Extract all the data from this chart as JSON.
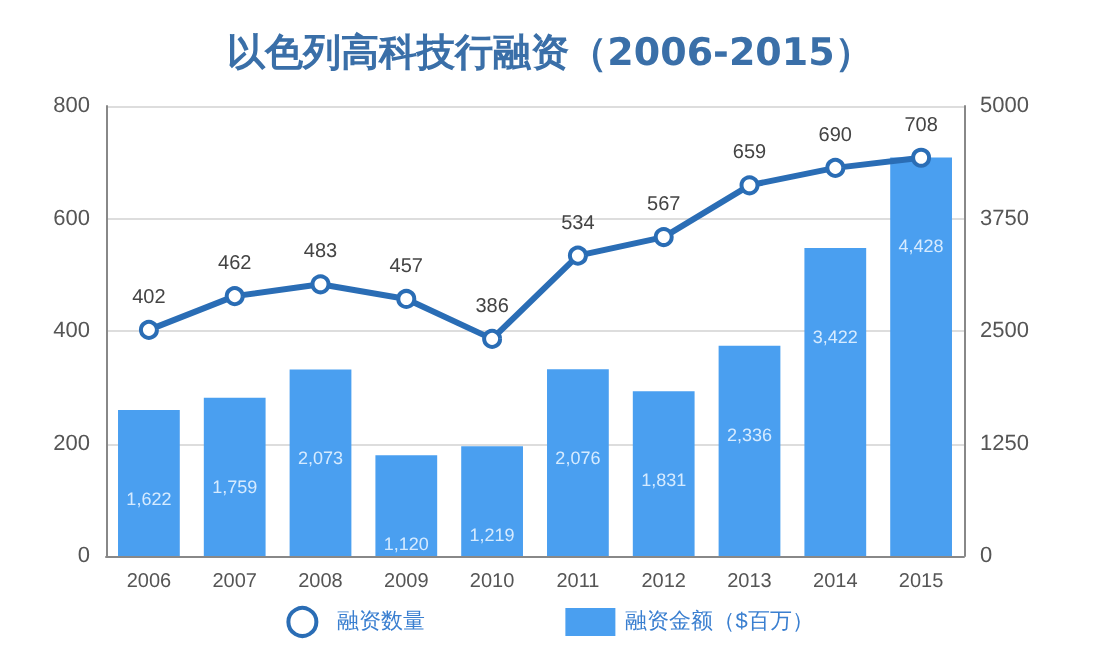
{
  "chart_data": {
    "type": "bar",
    "title": "以色列高科技行融资（2006-2015）",
    "categories": [
      "2006",
      "2007",
      "2008",
      "2009",
      "2010",
      "2011",
      "2012",
      "2013",
      "2014",
      "2015"
    ],
    "series": [
      {
        "name": "融资数量",
        "type": "line",
        "color": "#2a6db5",
        "values": [
          402,
          462,
          483,
          457,
          386,
          534,
          567,
          659,
          690,
          708
        ],
        "value_labels": [
          "402",
          "462",
          "483",
          "457",
          "386",
          "534",
          "567",
          "659",
          "690",
          "708"
        ]
      },
      {
        "name": "融资金额（$百万）",
        "axis": "y2",
        "color": "#4a9ff0",
        "values": [
          1622,
          1759,
          2073,
          1120,
          1219,
          2076,
          1831,
          2336,
          3422,
          4428
        ],
        "value_labels": [
          "1,622",
          "1,759",
          "2,073",
          "1,120",
          "1,219",
          "2,076",
          "1,831",
          "2,336",
          "3,422",
          "4,428"
        ]
      }
    ],
    "ylim": [
      0,
      800
    ],
    "yticks": [
      0,
      200,
      400,
      600,
      800
    ],
    "y2lim": [
      0,
      5000
    ],
    "y2ticks": [
      0,
      1250,
      2500,
      3750,
      5000
    ],
    "grid": "y",
    "legend": "bottom",
    "marker": "circle",
    "line_style": "solid"
  }
}
